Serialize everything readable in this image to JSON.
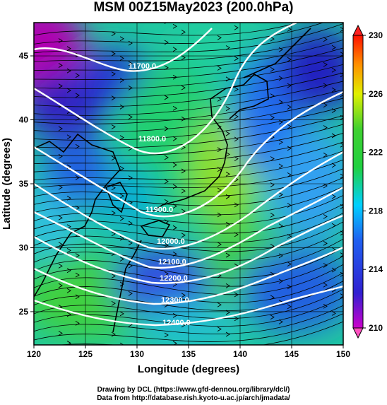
{
  "title": "MSM 00Z15May2023 (200.0hPa)",
  "footer": {
    "line1": "Drawing by DCL (https://www.gfd-dennou.org/library/dcl/)",
    "line2": "Data from http://database.rish.kyoto-u.ac.jp/arch/jmadata/"
  },
  "chart_data": {
    "type": "heatmap",
    "title": "MSM 00Z15May2023 (200.0hPa)",
    "xlabel": "Longitude (degrees)",
    "ylabel": "Latitude  (degrees)",
    "xlim": [
      120,
      150
    ],
    "ylim": [
      22.4,
      47.6
    ],
    "xticks": [
      120,
      125,
      130,
      135,
      140,
      145,
      150
    ],
    "yticks": [
      25,
      30,
      35,
      40,
      45
    ],
    "grid": true,
    "colorbar": {
      "min": 210,
      "max": 230,
      "ticks": [
        210,
        214,
        218,
        222,
        226,
        230
      ],
      "colors": [
        "#cc00cc",
        "#2020d8",
        "#00c8ff",
        "#30d030",
        "#f0f000",
        "#ff1000"
      ]
    },
    "contour_labels": [
      "11700.0",
      "11800.0",
      "11900.0",
      "12000.0",
      "12100.0",
      "12200.0",
      "12300.0",
      "12400.0"
    ],
    "map_colors": {
      "grid": "#000000",
      "contour": "#ffffff",
      "coastline": "#000000",
      "streamline": "#000000"
    }
  }
}
